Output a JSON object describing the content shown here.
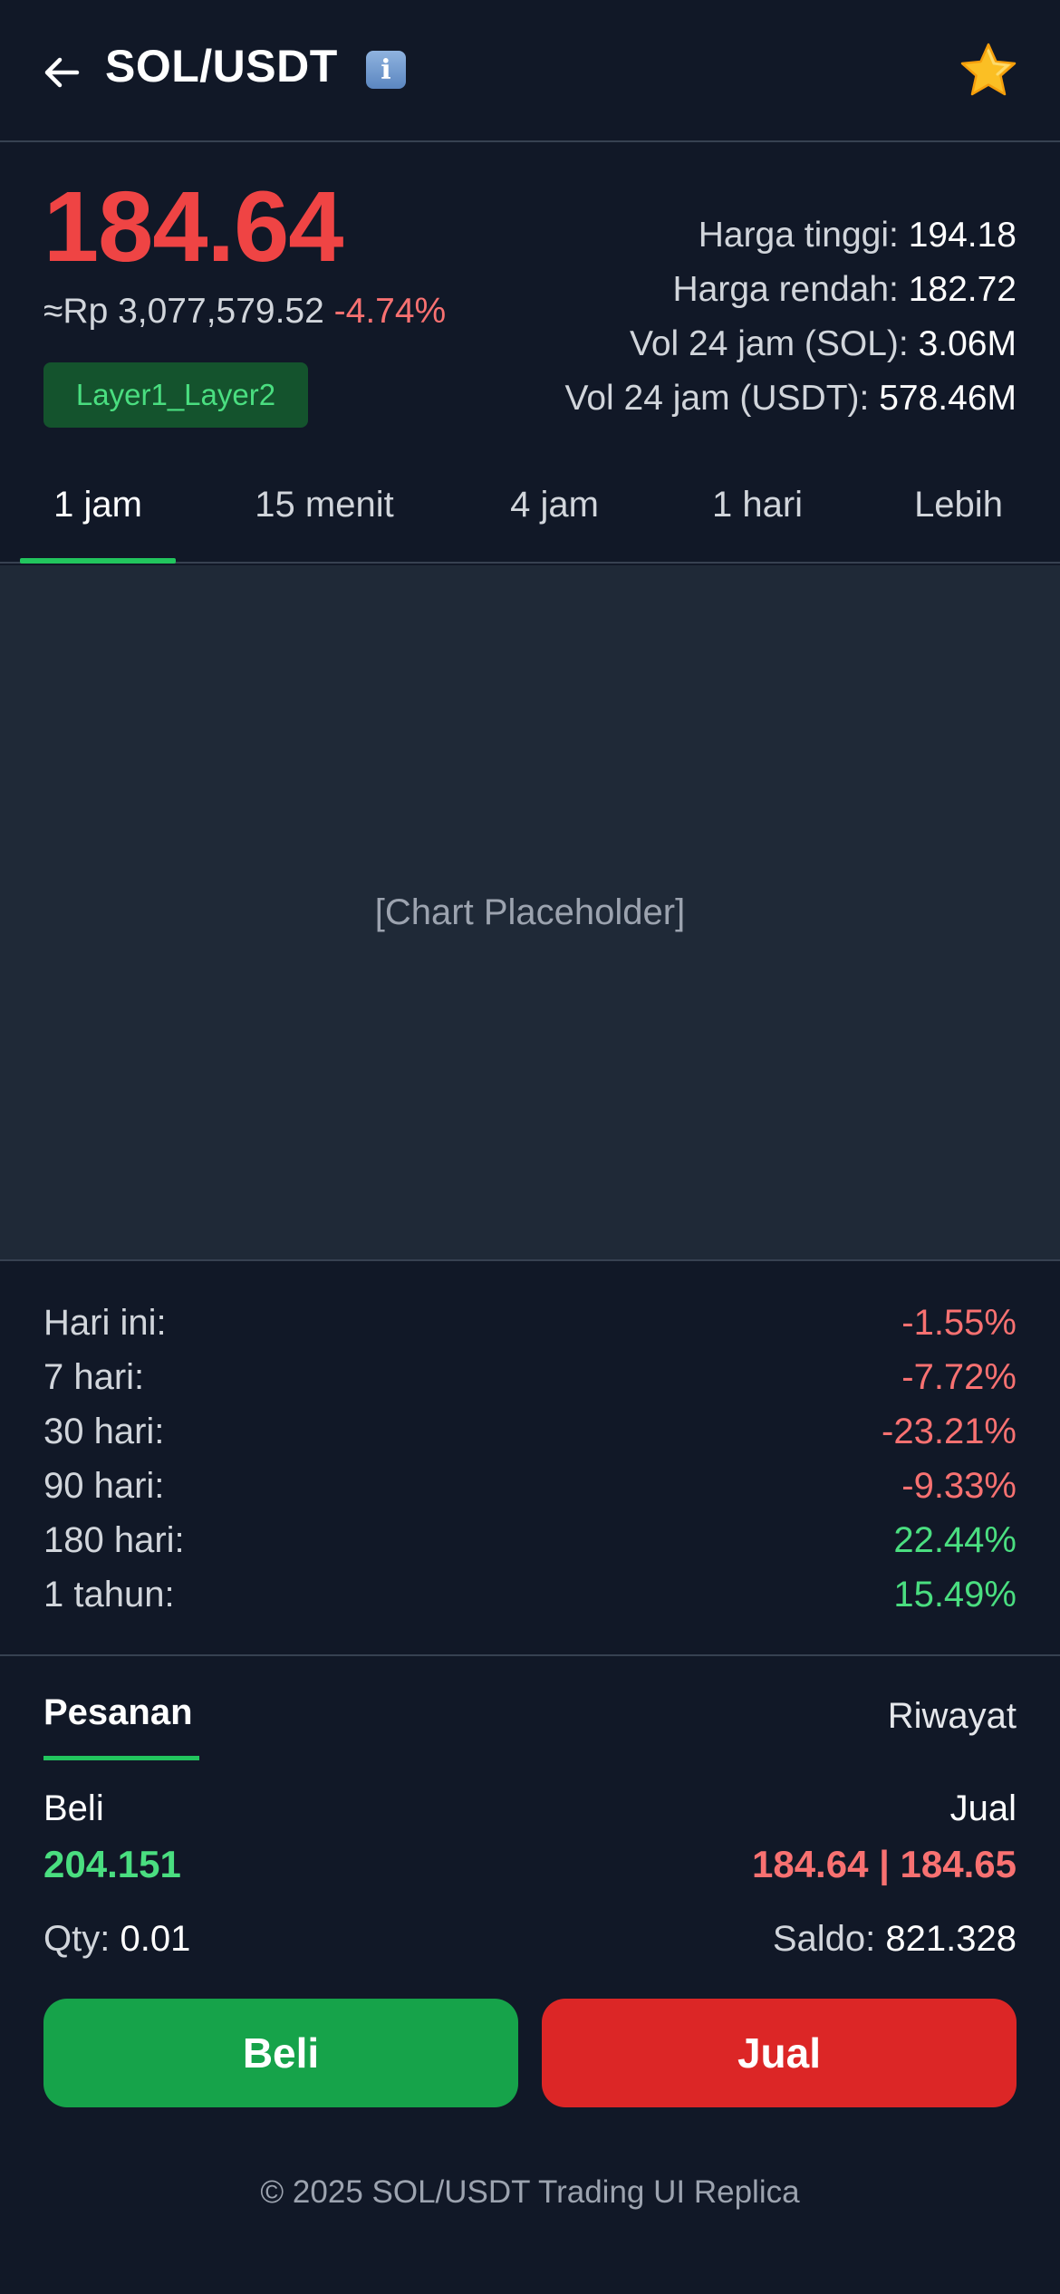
{
  "header": {
    "back_icon": "arrow-left-icon",
    "title": "SOL/USDT",
    "info_icon": "info-icon",
    "info_glyph": "i",
    "favorite_icon": "star-icon",
    "star_color": "#fbbf24"
  },
  "price": {
    "last": "184.64",
    "approx_idr": "≈Rp 3,077,579.52",
    "change_pct": "-4.74%",
    "tag": "Layer1_Layer2"
  },
  "stats": [
    {
      "label": "Harga tinggi:",
      "value": "194.18"
    },
    {
      "label": "Harga rendah:",
      "value": "182.72"
    },
    {
      "label": "Vol 24 jam (SOL):",
      "value": "3.06M"
    },
    {
      "label": "Vol 24 jam (USDT):",
      "value": "578.46M"
    }
  ],
  "tabs": [
    {
      "label": "1 jam",
      "active": true
    },
    {
      "label": "15 menit",
      "active": false
    },
    {
      "label": "4 jam",
      "active": false
    },
    {
      "label": "1 hari",
      "active": false
    },
    {
      "label": "Lebih",
      "active": false
    }
  ],
  "chart": {
    "placeholder": "[Chart Placeholder]"
  },
  "performance": [
    {
      "label": "Hari ini:",
      "value": "-1.55%",
      "trend": "neg"
    },
    {
      "label": "7 hari:",
      "value": "-7.72%",
      "trend": "neg"
    },
    {
      "label": "30 hari:",
      "value": "-23.21%",
      "trend": "neg"
    },
    {
      "label": "90 hari:",
      "value": "-9.33%",
      "trend": "neg"
    },
    {
      "label": "180 hari:",
      "value": "22.44%",
      "trend": "pos"
    },
    {
      "label": "1 tahun:",
      "value": "15.49%",
      "trend": "pos"
    }
  ],
  "orders": {
    "tab_orders": "Pesanan",
    "tab_history": "Riwayat",
    "buy_label": "Beli",
    "buy_price": "204.151",
    "sell_label": "Jual",
    "sell_price": "184.64 | 184.65",
    "qty_label": "Qty:",
    "qty_value": "0.01",
    "balance_label": "Saldo:",
    "balance_value": "821.328",
    "buy_button": "Beli",
    "sell_button": "Jual"
  },
  "footer": {
    "text": "© 2025 SOL/USDT Trading UI Replica"
  },
  "colors": {
    "background": "#111827",
    "positive": "#4ade80",
    "negative": "#f87171",
    "accent_green": "#22c55e",
    "price_red": "#ef4444"
  }
}
